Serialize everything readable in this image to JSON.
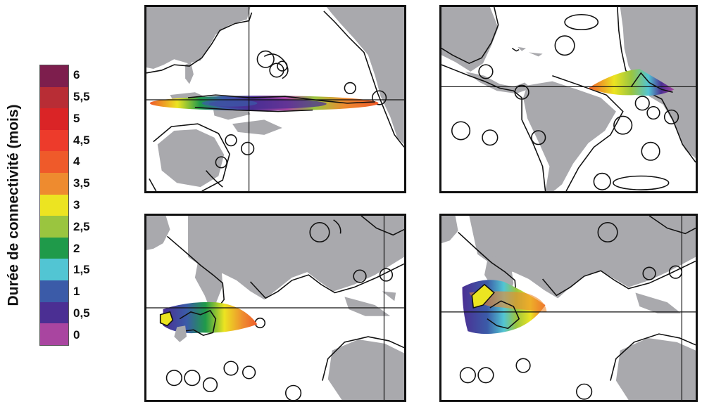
{
  "legend": {
    "title": "Durée de connectivité (mois)",
    "ticks": [
      "6",
      "5,5",
      "5",
      "4,5",
      "4",
      "3,5",
      "3",
      "2,5",
      "2",
      "1,5",
      "1",
      "0,5",
      "0"
    ],
    "colors": [
      "#7d1e4d",
      "#b82d35",
      "#da2426",
      "#ed3b2b",
      "#ef5a2a",
      "#ee8b2f",
      "#ece421",
      "#9ac53f",
      "#1f9a4a",
      "#52c5d3",
      "#3b5ba8",
      "#4b2f93",
      "#a945a0"
    ]
  },
  "panels": [
    {
      "id": "pacific"
    },
    {
      "id": "atlantic"
    },
    {
      "id": "west-indian"
    },
    {
      "id": "east-indian"
    }
  ]
}
